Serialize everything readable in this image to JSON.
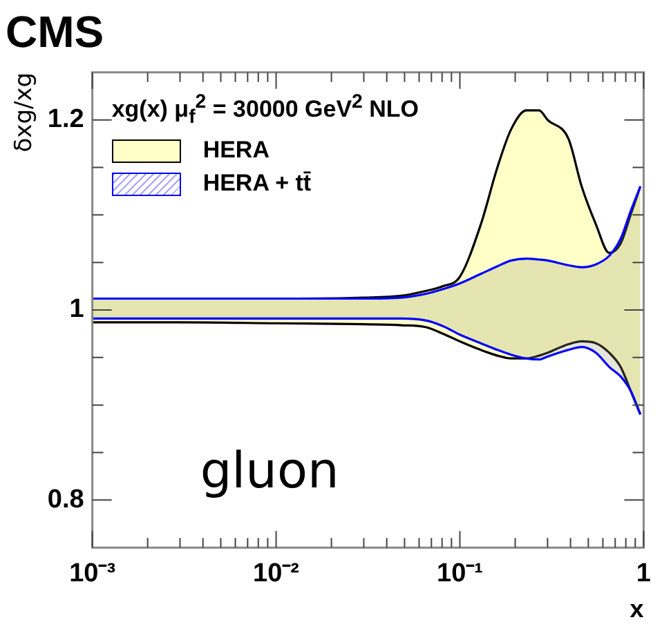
{
  "chart_data": {
    "type": "area",
    "title": "CMS",
    "xlabel": "x",
    "ylabel": "δxg/xg",
    "legend_title": "xg(x)   μ$_{f}$$^{2}$ = 30000 GeV$^{2}$  NLO",
    "annotations": [
      "gluon"
    ],
    "log": "x",
    "grid": false,
    "legend": "top left",
    "xlim": [
      0.001,
      1
    ],
    "xticks": [
      {
        "value": 0.001,
        "label": "10⁻³"
      },
      {
        "value": 0.002,
        "label": null
      },
      {
        "value": 0.003,
        "label": null
      },
      {
        "value": 0.004,
        "label": null
      },
      {
        "value": 0.005,
        "label": null
      },
      {
        "value": 0.006,
        "label": null
      },
      {
        "value": 0.007,
        "label": null
      },
      {
        "value": 0.008,
        "label": null
      },
      {
        "value": 0.009,
        "label": null
      },
      {
        "value": 0.01,
        "label": "10⁻²"
      },
      {
        "value": 0.02,
        "label": null
      },
      {
        "value": 0.03,
        "label": null
      },
      {
        "value": 0.04,
        "label": null
      },
      {
        "value": 0.05,
        "label": null
      },
      {
        "value": 0.06,
        "label": null
      },
      {
        "value": 0.07,
        "label": null
      },
      {
        "value": 0.08,
        "label": null
      },
      {
        "value": 0.09,
        "label": null
      },
      {
        "value": 0.1,
        "label": "10⁻¹"
      },
      {
        "value": 0.2,
        "label": null
      },
      {
        "value": 0.3,
        "label": null
      },
      {
        "value": 0.4,
        "label": null
      },
      {
        "value": 0.5,
        "label": null
      },
      {
        "value": 0.6,
        "label": null
      },
      {
        "value": 0.7,
        "label": null
      },
      {
        "value": 0.8,
        "label": null
      },
      {
        "value": 0.9,
        "label": null
      },
      1
    ],
    "ylim": [
      0.75,
      1.25
    ],
    "yticks": [
      0.8,
      {
        "value": 0.85,
        "label": null
      },
      {
        "value": 0.9,
        "label": null
      },
      {
        "value": 0.95,
        "label": null
      },
      1,
      {
        "value": 1.05,
        "label": null
      },
      {
        "value": 1.1,
        "label": null
      },
      {
        "value": 1.15,
        "label": null
      },
      1.2
    ],
    "x": [
      0.001,
      0.003,
      0.01,
      0.03,
      0.048,
      0.065,
      0.081,
      0.1,
      0.13,
      0.16,
      0.19,
      0.23,
      0.27,
      0.3,
      0.39,
      0.46,
      0.55,
      0.65,
      0.75,
      0.85,
      0.96
    ],
    "series": [
      {
        "name": "HERA",
        "color": "#ffffc8",
        "values": [
          1.012,
          1.012,
          1.012,
          1.013,
          1.015,
          1.02,
          1.025,
          1.035,
          1.09,
          1.15,
          1.19,
          1.21,
          1.21,
          1.2,
          1.18,
          1.13,
          1.09,
          1.06,
          1.07,
          1.1,
          1.13
        ]
      },
      {
        "type": "line",
        "color": "#000000",
        "values": [
          0.987,
          0.987,
          0.986,
          0.985,
          0.984,
          0.982,
          0.975,
          0.967,
          0.958,
          0.952,
          0.949,
          0.949,
          0.952,
          0.955,
          0.964,
          0.967,
          0.965,
          0.955,
          0.94,
          0.915,
          0.89
        ]
      },
      {
        "name": "HERA + tt̄",
        "color": "#0000ff",
        "values": [
          1.012,
          1.012,
          1.012,
          1.012,
          1.013,
          1.017,
          1.022,
          1.028,
          1.038,
          1.046,
          1.052,
          1.054,
          1.053,
          1.052,
          1.047,
          1.045,
          1.048,
          1.057,
          1.075,
          1.104,
          1.13
        ]
      },
      {
        "type": "line",
        "color": "#0000ff",
        "values": [
          0.991,
          0.991,
          0.991,
          0.991,
          0.991,
          0.989,
          0.983,
          0.974,
          0.965,
          0.958,
          0.953,
          0.949,
          0.948,
          0.951,
          0.958,
          0.961,
          0.955,
          0.94,
          0.93,
          0.915,
          0.89
        ]
      }
    ]
  }
}
